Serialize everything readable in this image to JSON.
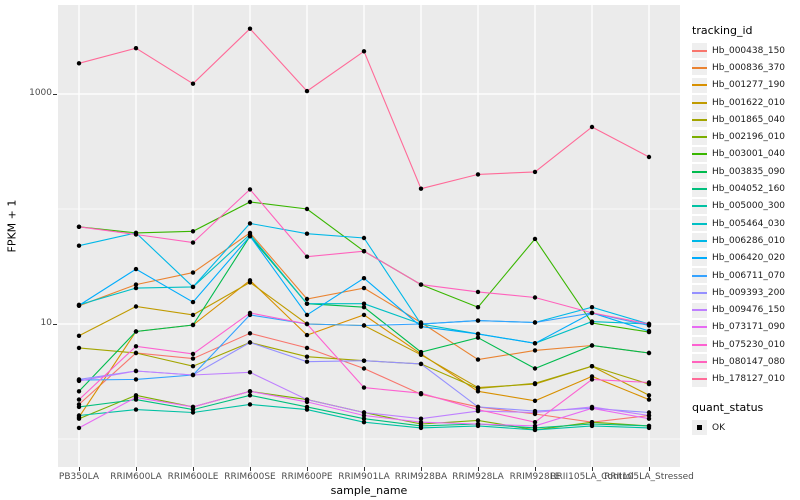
{
  "chart_data": {
    "type": "line",
    "title": "",
    "xlabel": "sample_name",
    "ylabel": "FPKM + 1",
    "y_scale": "log10",
    "grid": true,
    "panel_bg": "#EBEBEB",
    "grid_color": "#FFFFFF",
    "point_color": "#000000",
    "y_ticks": [
      {
        "label": "1000",
        "value": 1000
      },
      {
        "label": "10",
        "value": 10
      }
    ],
    "y_minor_gridlines": [
      100,
      1
    ],
    "categories": [
      "PB350LA",
      "RRIM600LA",
      "RRIM600LE",
      "RRIM600SE",
      "RRIM600PE",
      "RRIM901LA",
      "RRIM928BA",
      "RRIM928LA",
      "RRIM928LE",
      "RRII105LA_Control",
      "RRII105LA_Stressed"
    ],
    "series": [
      {
        "name": "Hb_000438_150",
        "color": "#F8766D",
        "values": [
          2.0,
          5.6,
          5.0,
          8.3,
          6.2,
          4.1,
          2.45,
          1.9,
          1.65,
          1.4,
          1.6
        ]
      },
      {
        "name": "Hb_000836_370",
        "color": "#EA8331",
        "values": [
          14.4,
          22,
          28,
          62,
          16.5,
          20.5,
          10.3,
          4.9,
          5.9,
          6.5,
          5.6
        ]
      },
      {
        "name": "Hb_001277_190",
        "color": "#D89000",
        "values": [
          1.55,
          8.6,
          9.8,
          24,
          8.0,
          12,
          5.5,
          2.6,
          2.15,
          3.5,
          2.2
        ]
      },
      {
        "name": "Hb_001622_010",
        "color": "#C09B00",
        "values": [
          7.9,
          14.2,
          12,
          23,
          10,
          9.7,
          5.4,
          2.8,
          3.0,
          4.3,
          2.4
        ]
      },
      {
        "name": "Hb_001865_040",
        "color": "#A3A500",
        "values": [
          6.2,
          5.6,
          4.3,
          6.9,
          5.2,
          4.8,
          4.5,
          2.75,
          3.05,
          4.3,
          3.0
        ]
      },
      {
        "name": "Hb_002196_010",
        "color": "#7CAE00",
        "values": [
          1.5,
          2.4,
          1.9,
          2.6,
          2.2,
          1.7,
          1.35,
          1.45,
          1.2,
          1.4,
          1.3
        ]
      },
      {
        "name": "Hb_003001_040",
        "color": "#39B600",
        "values": [
          70,
          62,
          64,
          115,
          100,
          43,
          22,
          14,
          55,
          10.2,
          8.5
        ]
      },
      {
        "name": "Hb_003835_090",
        "color": "#00BB4E",
        "values": [
          2.6,
          8.6,
          9.8,
          58,
          15,
          14,
          5.7,
          7.6,
          4.1,
          6.5,
          5.6
        ]
      },
      {
        "name": "Hb_004052_160",
        "color": "#00BF7D",
        "values": [
          1.9,
          2.2,
          1.8,
          2.4,
          1.9,
          1.5,
          1.3,
          1.35,
          1.25,
          1.35,
          1.3
        ]
      },
      {
        "name": "Hb_005000_300",
        "color": "#00C1A3",
        "values": [
          1.6,
          1.8,
          1.7,
          2.0,
          1.8,
          1.4,
          1.25,
          1.3,
          1.2,
          1.3,
          1.25
        ]
      },
      {
        "name": "Hb_005464_030",
        "color": "#00BFC4",
        "values": [
          14.7,
          20.5,
          21,
          60,
          15,
          15,
          10,
          8.2,
          6.8,
          10.5,
          10
        ]
      },
      {
        "name": "Hb_006286_010",
        "color": "#00B8E7",
        "values": [
          48,
          62,
          21,
          75,
          61,
          56,
          10,
          10.7,
          10.3,
          14,
          10
        ]
      },
      {
        "name": "Hb_006420_020",
        "color": "#00ACFC",
        "values": [
          14.5,
          30,
          15.5,
          58,
          12,
          25,
          9.5,
          8.2,
          6.8,
          12.5,
          8.7
        ]
      },
      {
        "name": "Hb_006711_070",
        "color": "#35A2FF",
        "values": [
          3.25,
          3.3,
          3.6,
          12,
          10,
          9.7,
          10,
          10.7,
          10.3,
          12.5,
          9.7
        ]
      },
      {
        "name": "Hb_009393_200",
        "color": "#9590FF",
        "values": [
          3.3,
          3.9,
          3.6,
          6.9,
          4.7,
          4.8,
          4.5,
          1.9,
          1.75,
          1.85,
          1.7
        ]
      },
      {
        "name": "Hb_009476_150",
        "color": "#BF80FF",
        "values": [
          3.2,
          3.9,
          3.6,
          3.8,
          2.2,
          1.7,
          1.5,
          1.75,
          1.7,
          1.9,
          1.6
        ]
      },
      {
        "name": "Hb_073171_090",
        "color": "#E76BF3",
        "values": [
          1.25,
          2.3,
          1.9,
          2.6,
          2.1,
          1.6,
          1.4,
          1.35,
          1.3,
          1.85,
          1.5
        ]
      },
      {
        "name": "Hb_075230_010",
        "color": "#FD61D1",
        "values": [
          2.2,
          6.4,
          5.5,
          12.5,
          10,
          2.8,
          2.5,
          1.8,
          1.4,
          3.3,
          3.1
        ]
      },
      {
        "name": "Hb_080147_080",
        "color": "#FF62BC",
        "values": [
          70,
          60,
          51,
          148,
          38.5,
          43,
          22,
          19,
          17,
          12.5,
          10
        ]
      },
      {
        "name": "Hb_178127_010",
        "color": "#FF6A98",
        "values": [
          1850,
          2500,
          1230,
          3700,
          1060,
          2350,
          150,
          200,
          210,
          516,
          283
        ]
      }
    ],
    "legend_position": "right"
  },
  "legend": {
    "tracking_title": "tracking_id",
    "quant_title": "quant_status",
    "quant_items": [
      {
        "label": "OK"
      }
    ]
  }
}
